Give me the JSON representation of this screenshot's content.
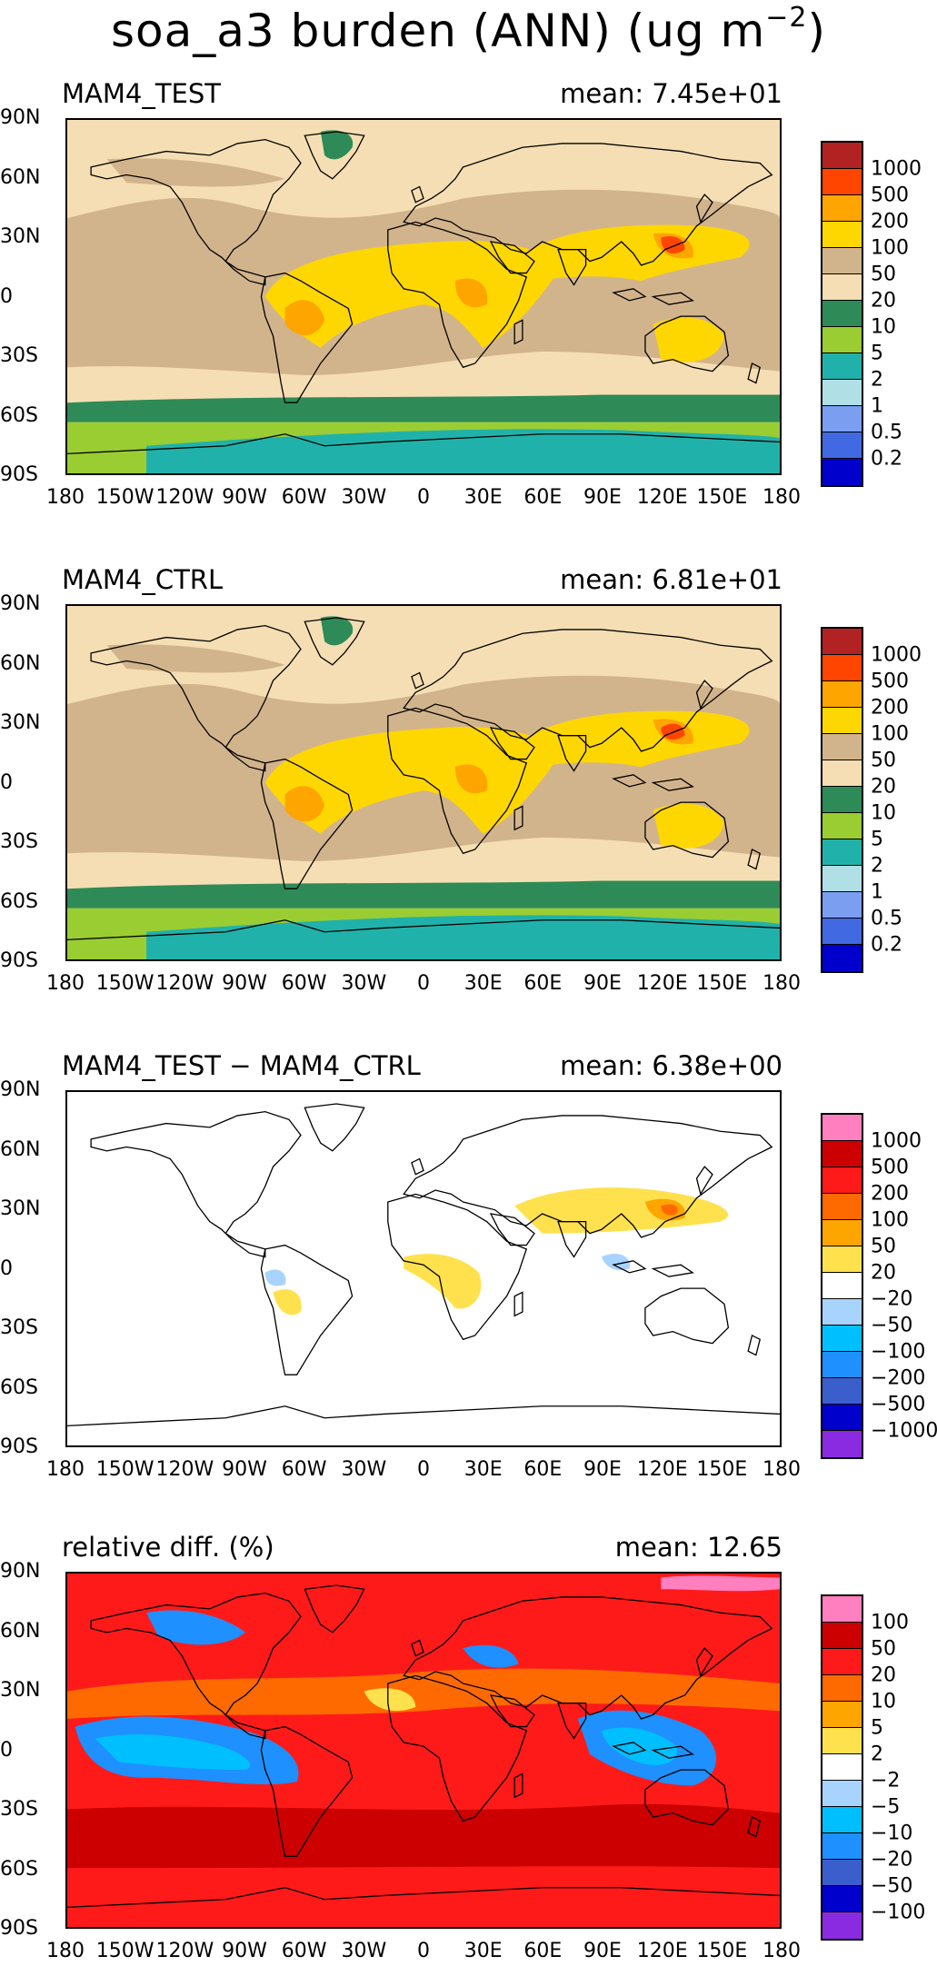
{
  "title": {
    "main": "soa_a3 burden (ANN) (ug m",
    "unit_exp": "−2",
    "close": ")"
  },
  "lat_ticks": [
    "90N",
    "60N",
    "30N",
    "0",
    "30S",
    "60S",
    "90S"
  ],
  "lon_ticks": [
    "180",
    "150W",
    "120W",
    "90W",
    "60W",
    "30W",
    "0",
    "30E",
    "60E",
    "90E",
    "120E",
    "150E",
    "180"
  ],
  "panels": [
    {
      "label": "MAM4_TEST",
      "mean": "mean: 7.45e+01",
      "colorbar": {
        "colors": [
          "#b22222",
          "#ff4500",
          "#ffa500",
          "#ffd700",
          "#d2b48c",
          "#f5deb3",
          "#2e8b57",
          "#9acd32",
          "#20b2aa",
          "#b0e0e6",
          "#7b9ef0",
          "#4169e1",
          "#0000cd"
        ],
        "labels": [
          "1000",
          "500",
          "200",
          "100",
          "50",
          "20",
          "10",
          "5",
          "2",
          "1",
          "0.5",
          "0.2"
        ]
      }
    },
    {
      "label": "MAM4_CTRL",
      "mean": "mean: 6.81e+01",
      "colorbar": {
        "colors": [
          "#b22222",
          "#ff4500",
          "#ffa500",
          "#ffd700",
          "#d2b48c",
          "#f5deb3",
          "#2e8b57",
          "#9acd32",
          "#20b2aa",
          "#b0e0e6",
          "#7b9ef0",
          "#4169e1",
          "#0000cd"
        ],
        "labels": [
          "1000",
          "500",
          "200",
          "100",
          "50",
          "20",
          "10",
          "5",
          "2",
          "1",
          "0.5",
          "0.2"
        ]
      }
    },
    {
      "label": "MAM4_TEST − MAM4_CTRL",
      "mean": "mean: 6.38e+00",
      "colorbar": {
        "colors": [
          "#ff7fbf",
          "#cc0000",
          "#ff1a1a",
          "#ff6a00",
          "#ffa500",
          "#ffe14d",
          "#ffffff",
          "#a9d3ff",
          "#00bfff",
          "#1e90ff",
          "#3a5fcd",
          "#0000cd",
          "#8a2be2"
        ],
        "labels": [
          "1000",
          "500",
          "200",
          "100",
          "50",
          "20",
          "−20",
          "−50",
          "−100",
          "−200",
          "−500",
          "−1000"
        ]
      }
    },
    {
      "label": "relative diff. (%)",
      "mean": "mean: 12.65",
      "colorbar": {
        "colors": [
          "#ff7fbf",
          "#cc0000",
          "#ff1a1a",
          "#ff6a00",
          "#ffa500",
          "#ffe14d",
          "#ffffff",
          "#a9d3ff",
          "#00bfff",
          "#1e90ff",
          "#3a5fcd",
          "#0000cd",
          "#8a2be2"
        ],
        "labels": [
          "100",
          "50",
          "20",
          "10",
          "5",
          "2",
          "−2",
          "−5",
          "−10",
          "−20",
          "−50",
          "−100"
        ]
      }
    }
  ]
}
